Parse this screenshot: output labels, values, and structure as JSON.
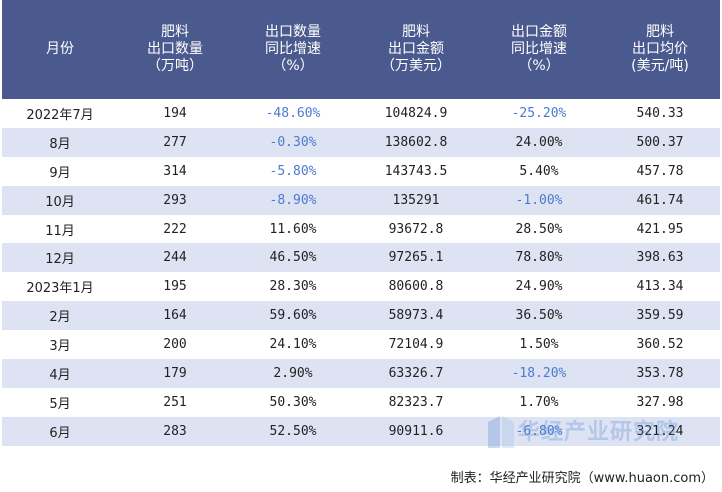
{
  "table": {
    "headers": [
      [
        "月份"
      ],
      [
        "肥料",
        "出口数量",
        "（万吨）"
      ],
      [
        "出口数量",
        "同比增速",
        "（%）"
      ],
      [
        "肥料",
        "出口金额",
        "（万美元）"
      ],
      [
        "出口金额",
        "同比增速",
        "（%）"
      ],
      [
        "肥料",
        "出口均价",
        "(美元/吨)"
      ]
    ],
    "rows": [
      [
        "2022年7月",
        "194",
        "-48.60%",
        "104824.9",
        "-25.20%",
        "540.33"
      ],
      [
        "8月",
        "277",
        "-0.30%",
        "138602.8",
        "24.00%",
        "500.37"
      ],
      [
        "9月",
        "314",
        "-5.80%",
        "143743.5",
        "5.40%",
        "457.78"
      ],
      [
        "10月",
        "293",
        "-8.90%",
        "135291",
        "-1.00%",
        "461.74"
      ],
      [
        "11月",
        "222",
        "11.60%",
        "93672.8",
        "28.50%",
        "421.95"
      ],
      [
        "12月",
        "244",
        "46.50%",
        "97265.1",
        "78.80%",
        "398.63"
      ],
      [
        "2023年1月",
        "195",
        "28.30%",
        "80600.8",
        "24.90%",
        "413.34"
      ],
      [
        "2月",
        "164",
        "59.60%",
        "58973.4",
        "36.50%",
        "359.59"
      ],
      [
        "3月",
        "200",
        "24.10%",
        "72104.9",
        "1.50%",
        "360.52"
      ],
      [
        "4月",
        "179",
        "2.90%",
        "63326.7",
        "-18.20%",
        "353.78"
      ],
      [
        "5月",
        "251",
        "50.30%",
        "82323.7",
        "1.70%",
        "327.98"
      ],
      [
        "6月",
        "283",
        "52.50%",
        "90911.6",
        "-6.80%",
        "321.24"
      ]
    ]
  },
  "footer": {
    "source": "制表：华经产业研究院（www.huaon.com）"
  },
  "watermark": {
    "text": "华经产业研究院"
  },
  "colors": {
    "header_bg": "#4b5a8e",
    "stripe": "#dde3f2",
    "negative": "#4a7bd0"
  }
}
